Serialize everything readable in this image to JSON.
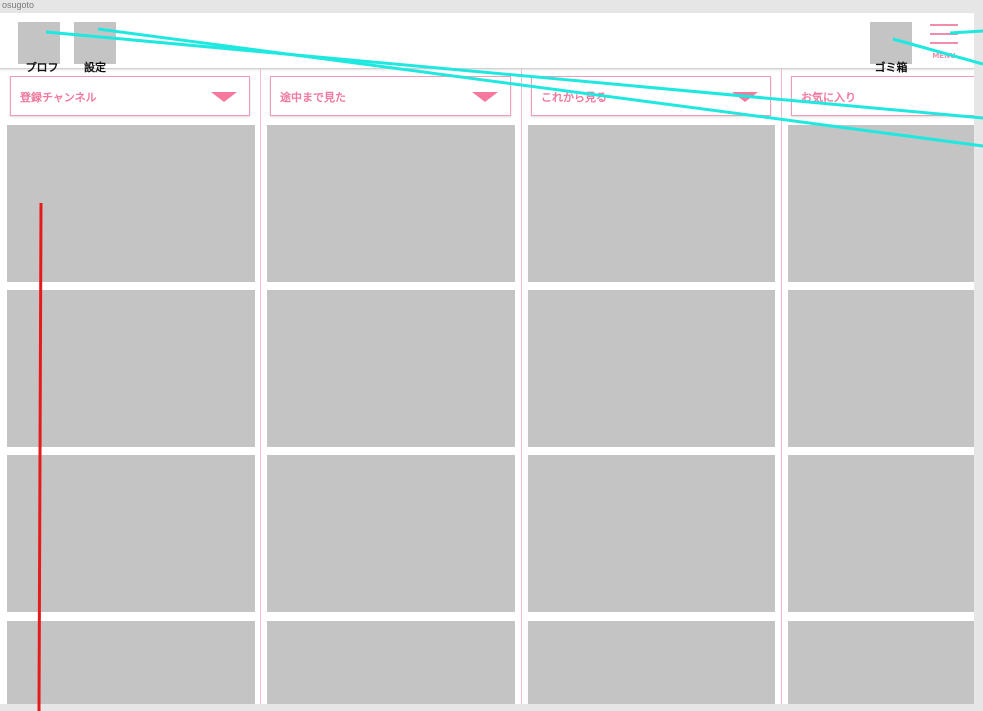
{
  "canvas": {
    "label": "osugoto"
  },
  "header": {
    "profile_icon_label": "プロフ\nアイコン",
    "settings_icon_label": "設定\nアイコン",
    "trash_icon_label": "ゴミ箱\nアイコン",
    "menu_label": "MENU"
  },
  "columns": [
    {
      "dropdown_label": "登録チャンネル",
      "has_arrow": true
    },
    {
      "dropdown_label": "途中まで見た",
      "has_arrow": true
    },
    {
      "dropdown_label": "これから見る",
      "has_arrow": true
    },
    {
      "dropdown_label": "お気に入り",
      "has_arrow": false
    }
  ],
  "colors": {
    "accent_pink": "#f28caa",
    "placeholder_gray": "#c4c4c4",
    "annotation_cyan": "#1ee8e0",
    "annotation_red": "#e51b1b"
  }
}
